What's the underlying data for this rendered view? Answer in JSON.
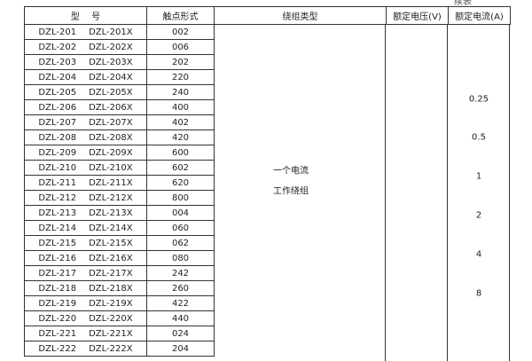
{
  "caption": "续表",
  "headers": {
    "model": "型　 号",
    "contact": "触点形式",
    "winding": "绕组类型",
    "voltage": "额定电压(V)",
    "current": "额定电流(A)"
  },
  "rows": [
    [
      "DZL-201",
      "DZL-201X",
      "002"
    ],
    [
      "DZL-202",
      "DZL-202X",
      "006"
    ],
    [
      "DZL-203",
      "DZL-203X",
      "202"
    ],
    [
      "DZL-204",
      "DZL-204X",
      "220"
    ],
    [
      "DZL-205",
      "DZL-205X",
      "240"
    ],
    [
      "DZL-206",
      "DZL-206X",
      "400"
    ],
    [
      "DZL-207",
      "DZL-207X",
      "402"
    ],
    [
      "DZL-208",
      "DZL-208X",
      "420"
    ],
    [
      "DZL-209",
      "DZL-209X",
      "600"
    ],
    [
      "DZL-210",
      "DZL-210X",
      "602"
    ],
    [
      "DZL-211",
      "DZL-211X",
      "620"
    ],
    [
      "DZL-212",
      "DZL-212X",
      "800"
    ],
    [
      "DZL-213",
      "DZL-213X",
      "004"
    ],
    [
      "DZL-214",
      "DZL-214X",
      "060"
    ],
    [
      "DZL-215",
      "DZL-215X",
      "062"
    ],
    [
      "DZL-216",
      "DZL-216X",
      "080"
    ],
    [
      "DZL-217",
      "DZL-217X",
      "242"
    ],
    [
      "DZL-218",
      "DZL-218X",
      "260"
    ],
    [
      "DZL-219",
      "DZL-219X",
      "422"
    ],
    [
      "DZL-220",
      "DZL-220X",
      "440"
    ],
    [
      "DZL-221",
      "DZL-221X",
      "024"
    ],
    [
      "DZL-222",
      "DZL-222X",
      "204"
    ]
  ],
  "winding": {
    "line1": "一个电流",
    "line2": "工作绕组"
  },
  "currents": [
    "0.25",
    "0.5",
    "1",
    "2",
    "4",
    "8"
  ]
}
